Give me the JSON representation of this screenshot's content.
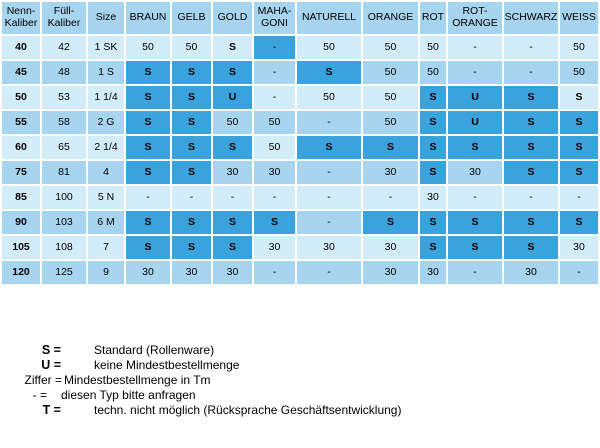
{
  "table": {
    "headers": [
      [
        "Nenn-",
        "Kaliber"
      ],
      [
        "Füll-",
        "Kaliber"
      ],
      [
        "Size"
      ],
      [
        "BRAUN"
      ],
      [
        "GELB"
      ],
      [
        "GOLD"
      ],
      [
        "MAHA-",
        "GONI"
      ],
      [
        "NATURELL"
      ],
      [
        "ORANGE"
      ],
      [
        "ROT"
      ],
      [
        "ROT-",
        "ORANGE"
      ],
      [
        "SCHWARZ"
      ],
      [
        "WEISS"
      ]
    ],
    "rows": [
      {
        "nenn": "40",
        "fuell": "42",
        "size": "1 SK",
        "values": [
          "50",
          "50",
          "S",
          "-",
          "50",
          "50",
          "50",
          "-",
          "-",
          "50"
        ]
      },
      {
        "nenn": "45",
        "fuell": "48",
        "size": "1 S",
        "values": [
          "S",
          "S",
          "S",
          "-",
          "S",
          "50",
          "50",
          "-",
          "-",
          "50"
        ]
      },
      {
        "nenn": "50",
        "fuell": "53",
        "size": "1 1/4",
        "values": [
          "S",
          "S",
          "U",
          "-",
          "50",
          "50",
          "S",
          "U",
          "S",
          "S"
        ]
      },
      {
        "nenn": "55",
        "fuell": "58",
        "size": "2 G",
        "values": [
          "S",
          "S",
          "50",
          "50",
          "-",
          "50",
          "S",
          "U",
          "S",
          "S"
        ]
      },
      {
        "nenn": "60",
        "fuell": "65",
        "size": "2 1/4",
        "values": [
          "S",
          "S",
          "S",
          "50",
          "S",
          "S",
          "S",
          "S",
          "S",
          "S"
        ]
      },
      {
        "nenn": "75",
        "fuell": "81",
        "size": "4",
        "values": [
          "S",
          "S",
          "30",
          "30",
          "-",
          "30",
          "S",
          "30",
          "S",
          "S"
        ]
      },
      {
        "nenn": "85",
        "fuell": "100",
        "size": "5 N",
        "values": [
          "-",
          "-",
          "-",
          "-",
          "-",
          "-",
          "30",
          "-",
          "-",
          "-"
        ]
      },
      {
        "nenn": "90",
        "fuell": "103",
        "size": "6 M",
        "values": [
          "S",
          "S",
          "S",
          "S",
          "-",
          "S",
          "S",
          "S",
          "S",
          "S"
        ]
      },
      {
        "nenn": "105",
        "fuell": "108",
        "size": "7",
        "values": [
          "S",
          "S",
          "S",
          "30",
          "30",
          "30",
          "S",
          "S",
          "S",
          "30"
        ]
      },
      {
        "nenn": "120",
        "fuell": "125",
        "size": "9",
        "values": [
          "30",
          "30",
          "30",
          "-",
          "-",
          "30",
          "30",
          "-",
          "30",
          "-"
        ]
      }
    ],
    "shade": [
      [
        "L",
        "L",
        "L",
        "L",
        "L",
        "L",
        "D",
        "L",
        "L",
        "L",
        "L",
        "L",
        "L"
      ],
      [
        "M",
        "M",
        "M",
        "D",
        "D",
        "D",
        "M",
        "D",
        "M",
        "M",
        "M",
        "M",
        "M"
      ],
      [
        "L",
        "L",
        "L",
        "D",
        "D",
        "D",
        "L",
        "L",
        "L",
        "D",
        "D",
        "D",
        "L"
      ],
      [
        "M",
        "M",
        "M",
        "D",
        "D",
        "M",
        "M",
        "M",
        "M",
        "D",
        "D",
        "D",
        "D"
      ],
      [
        "L",
        "L",
        "L",
        "D",
        "D",
        "D",
        "L",
        "D",
        "D",
        "D",
        "D",
        "D",
        "D"
      ],
      [
        "M",
        "M",
        "M",
        "D",
        "D",
        "M",
        "M",
        "M",
        "M",
        "D",
        "M",
        "D",
        "D"
      ],
      [
        "L",
        "L",
        "L",
        "L",
        "L",
        "L",
        "L",
        "L",
        "L",
        "L",
        "L",
        "L",
        "L"
      ],
      [
        "M",
        "M",
        "M",
        "D",
        "D",
        "D",
        "D",
        "M",
        "D",
        "D",
        "D",
        "D",
        "D"
      ],
      [
        "L",
        "L",
        "L",
        "D",
        "D",
        "D",
        "L",
        "L",
        "L",
        "D",
        "D",
        "D",
        "L"
      ],
      [
        "M",
        "M",
        "M",
        "M",
        "M",
        "M",
        "M",
        "M",
        "M",
        "M",
        "M",
        "M",
        "M"
      ]
    ]
  },
  "legend": [
    {
      "key": "S =",
      "desc": "Standard (Rollenware)"
    },
    {
      "key": "U =",
      "desc": "keine Mindestbestellmenge"
    },
    {
      "key": "Ziffer =",
      "desc": "Mindestbestellmenge in Tm"
    },
    {
      "key": "- =",
      "desc": "diesen Typ bitte anfragen"
    },
    {
      "key": "T =",
      "desc": "techn. nicht möglich (Rücksprache Geschäftsentwicklung)"
    }
  ],
  "colors": {
    "light": "#d3ecf9",
    "medium": "#a7d4ee",
    "dark": "#3aa2dc"
  }
}
